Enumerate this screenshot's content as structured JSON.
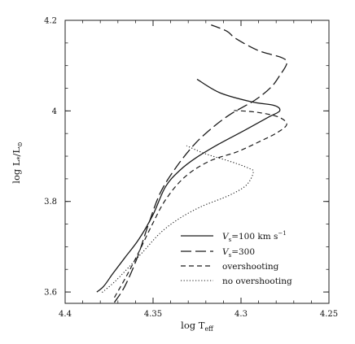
{
  "chart_data": {
    "type": "line",
    "title": "",
    "xlabel": "log T",
    "xlabel_sub": "eff",
    "ylabel": "log L",
    "ylabel_sub": "*",
    "ylabel_tail": "/L",
    "ylabel_sun": "⊙",
    "xlim": [
      4.4,
      4.25
    ],
    "ylim": [
      3.575,
      4.2
    ],
    "x_reversed": true,
    "x_ticks": [
      "4.4",
      "4.35",
      "4.3",
      "4.25"
    ],
    "x_tick_values": [
      4.4,
      4.35,
      4.3,
      4.25
    ],
    "y_ticks": [
      "3.6",
      "3.8",
      "4",
      "4.2"
    ],
    "y_tick_values": [
      3.6,
      3.8,
      4.0,
      4.2
    ],
    "grid": false,
    "legend_position": "bottom-right",
    "series": [
      {
        "key": "v100",
        "dash": "solid",
        "legend": {
          "v": "V",
          "sub": "s",
          "text": "=100 km s",
          "sup": "−1"
        },
        "x": [
          4.382,
          4.378,
          4.373,
          4.366,
          4.358,
          4.35,
          4.343,
          4.335,
          4.325,
          4.312,
          4.298,
          4.284,
          4.278,
          4.281,
          4.294,
          4.312,
          4.325
        ],
        "y": [
          3.6,
          3.613,
          3.64,
          3.676,
          3.717,
          3.771,
          3.832,
          3.868,
          3.898,
          3.928,
          3.957,
          3.987,
          4.0,
          4.012,
          4.02,
          4.04,
          4.07
        ]
      },
      {
        "key": "v300",
        "dash": "longdash",
        "legend": {
          "v": "V",
          "sub": "s",
          "text": "=300"
        },
        "x": [
          4.372,
          4.366,
          4.359,
          4.353,
          4.346,
          4.337,
          4.326,
          4.315,
          4.305,
          4.292,
          4.283,
          4.278,
          4.274,
          4.277,
          4.29,
          4.303,
          4.308,
          4.317
        ],
        "y": [
          3.577,
          3.613,
          3.676,
          3.745,
          3.818,
          3.875,
          3.928,
          3.967,
          3.995,
          4.024,
          4.052,
          4.078,
          4.105,
          4.118,
          4.133,
          4.16,
          4.176,
          4.19
        ]
      },
      {
        "key": "overshooting",
        "dash": "shortdash",
        "legend": {
          "text": "overshooting"
        },
        "x": [
          4.372,
          4.365,
          4.358,
          4.351,
          4.343,
          4.332,
          4.318,
          4.302,
          4.288,
          4.279,
          4.274,
          4.279,
          4.291,
          4.304
        ],
        "y": [
          3.588,
          3.636,
          3.689,
          3.745,
          3.803,
          3.854,
          3.889,
          3.91,
          3.935,
          3.953,
          3.971,
          3.987,
          3.997,
          4.001
        ]
      },
      {
        "key": "no_overshooting",
        "dash": "dotted",
        "legend": {
          "text": "no overshooting"
        },
        "x": [
          4.379,
          4.372,
          4.364,
          4.355,
          4.346,
          4.336,
          4.323,
          4.307,
          4.297,
          4.293,
          4.296,
          4.305,
          4.32,
          4.331
        ],
        "y": [
          3.599,
          3.622,
          3.654,
          3.692,
          3.73,
          3.76,
          3.788,
          3.813,
          3.836,
          3.865,
          3.874,
          3.887,
          3.905,
          3.923
        ]
      }
    ]
  }
}
